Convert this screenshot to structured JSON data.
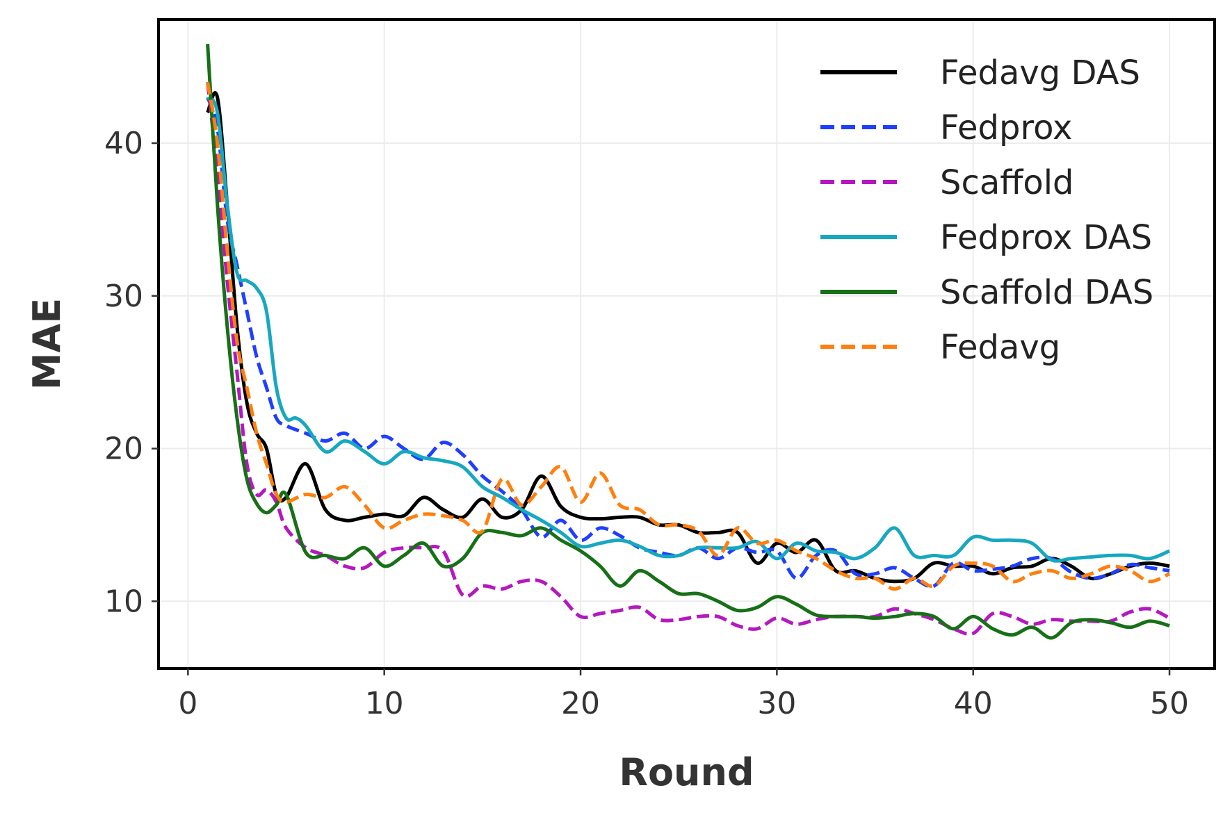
{
  "chart_data": {
    "type": "line",
    "xlabel": "Round",
    "ylabel": "MAE",
    "xlim": [
      -1.5,
      52.3
    ],
    "ylim": [
      5.6,
      48.1
    ],
    "xticks": [
      0,
      10,
      20,
      30,
      40,
      50
    ],
    "yticks": [
      10,
      20,
      30,
      40
    ],
    "grid": true,
    "legend_position": "top-right",
    "series": [
      {
        "name": "Fedavg DAS",
        "color": "#000000",
        "dash": "solid",
        "x": [
          1,
          1.5,
          2,
          2.5,
          3,
          3.5,
          4,
          4.5,
          5,
          6,
          7,
          8,
          9,
          10,
          11,
          12,
          13,
          14,
          15,
          16,
          17,
          18,
          19,
          20,
          21,
          22,
          23,
          24,
          25,
          26,
          27,
          28,
          29,
          30,
          31,
          32,
          33,
          34,
          35,
          36,
          37,
          38,
          39,
          40,
          41,
          42,
          43,
          44,
          45,
          46,
          47,
          48,
          49,
          50
        ],
        "y": [
          42,
          43,
          36,
          28,
          23,
          21,
          20,
          17,
          16.8,
          19,
          16,
          15.3,
          15.5,
          15.7,
          15.6,
          16.8,
          16,
          15.5,
          16.7,
          15.5,
          16,
          18.2,
          16.2,
          15.5,
          15.4,
          15.5,
          15.5,
          15,
          15,
          14.5,
          14.5,
          14.5,
          12.5,
          13.8,
          13.2,
          14,
          12,
          12,
          11.5,
          11.3,
          11.5,
          12.5,
          12.3,
          12.3,
          11.8,
          12.2,
          12.3,
          12.8,
          12.3,
          11.5,
          11.8,
          12.3,
          12.5,
          12.3
        ]
      },
      {
        "name": "Fedprox",
        "color": "#1f3fff",
        "dash": "dashed",
        "x": [
          1,
          1.5,
          2,
          2.5,
          3,
          3.5,
          4,
          4.5,
          5,
          6,
          7,
          8,
          9,
          10,
          11,
          12,
          13,
          14,
          15,
          16,
          17,
          18,
          19,
          20,
          21,
          22,
          23,
          24,
          25,
          26,
          27,
          28,
          29,
          30,
          31,
          32,
          33,
          34,
          35,
          36,
          37,
          38,
          39,
          40,
          41,
          42,
          43,
          44,
          45,
          46,
          47,
          48,
          49,
          50
        ],
        "y": [
          43,
          41,
          35,
          32,
          29,
          26,
          24,
          22,
          21.5,
          21,
          20.5,
          21,
          20,
          20.8,
          20,
          19.3,
          20.4,
          19.6,
          18.2,
          17.2,
          16,
          14.2,
          15.3,
          14,
          14.8,
          14.3,
          13.5,
          13.2,
          13,
          13.5,
          12.8,
          13.5,
          13.2,
          13.3,
          11.5,
          13,
          13.3,
          11.8,
          11.8,
          12.2,
          11.5,
          11,
          12.5,
          12,
          12.1,
          12.3,
          12.8,
          12.8,
          11.9,
          11.5,
          11.8,
          12.4,
          12.2,
          12
        ]
      },
      {
        "name": "Scaffold",
        "color": "#b517c0",
        "dash": "dashed",
        "x": [
          1,
          1.5,
          2,
          2.5,
          3,
          3.5,
          4,
          4.5,
          5,
          6,
          7,
          8,
          9,
          10,
          11,
          12,
          13,
          14,
          15,
          16,
          17,
          18,
          19,
          20,
          21,
          22,
          23,
          24,
          25,
          26,
          27,
          28,
          29,
          30,
          31,
          32,
          33,
          34,
          35,
          36,
          37,
          38,
          39,
          40,
          41,
          42,
          43,
          44,
          45,
          46,
          47,
          48,
          49,
          50
        ],
        "y": [
          44,
          38,
          31,
          25,
          19,
          17,
          17.3,
          16.5,
          14.8,
          13.5,
          13,
          12.3,
          12.2,
          13.2,
          13.5,
          13.5,
          13.3,
          10.4,
          11,
          10.8,
          11.3,
          11.3,
          10.3,
          9,
          9.2,
          9.4,
          9.6,
          8.8,
          8.8,
          9,
          9,
          8.4,
          8.2,
          8.9,
          8.5,
          8.8,
          9,
          9,
          9,
          9.5,
          9.2,
          8.8,
          8.2,
          7.9,
          9.2,
          9,
          8.5,
          8.8,
          8.7,
          8.7,
          8.7,
          9.3,
          9.5,
          8.9
        ]
      },
      {
        "name": "Fedprox DAS",
        "color": "#17a8c0",
        "dash": "solid",
        "x": [
          1,
          1.5,
          2,
          2.5,
          3,
          3.5,
          4,
          4.5,
          5,
          5.5,
          6,
          7,
          8,
          9,
          10,
          11,
          12,
          13,
          14,
          15,
          16,
          17,
          18,
          19,
          20,
          21,
          22,
          23,
          24,
          25,
          26,
          27,
          28,
          29,
          30,
          31,
          32,
          33,
          34,
          35,
          36,
          37,
          38,
          39,
          40,
          41,
          42,
          43,
          44,
          45,
          46,
          47,
          48,
          49,
          50
        ],
        "y": [
          43,
          42,
          36,
          31.5,
          31,
          30.5,
          29,
          24,
          22,
          22,
          21.5,
          19.8,
          20.5,
          19.8,
          19,
          19.8,
          19.4,
          19.2,
          18.8,
          17.5,
          16.8,
          16,
          15.3,
          14.5,
          13.6,
          13.8,
          14,
          13.6,
          13,
          13,
          13.5,
          13.5,
          13.5,
          13.9,
          12.8,
          13.8,
          13.3,
          13.2,
          12.8,
          13.5,
          14.8,
          13,
          13,
          13,
          14.2,
          14,
          14,
          13.8,
          12.7,
          12.8,
          12.9,
          13,
          13,
          12.8,
          13.3
        ]
      },
      {
        "name": "Scaffold DAS",
        "color": "#177017",
        "dash": "solid",
        "x": [
          1,
          1.5,
          2,
          2.5,
          3,
          3.5,
          4,
          4.5,
          5,
          6,
          7,
          8,
          9,
          10,
          11,
          12,
          13,
          14,
          15,
          16,
          17,
          18,
          19,
          20,
          21,
          22,
          23,
          24,
          25,
          26,
          27,
          28,
          29,
          30,
          31,
          32,
          33,
          34,
          35,
          36,
          37,
          38,
          39,
          40,
          41,
          42,
          43,
          44,
          45,
          46,
          47,
          48,
          49,
          50
        ],
        "y": [
          46.5,
          36,
          28,
          22,
          18,
          16.4,
          15.8,
          16.3,
          17,
          13.2,
          13,
          12.8,
          13.5,
          12.3,
          13,
          13.8,
          12.3,
          12.8,
          14.5,
          14.5,
          14.3,
          14.8,
          14,
          13.3,
          12.3,
          11,
          12,
          11.3,
          10.5,
          10.5,
          10,
          9.4,
          9.6,
          10.3,
          9.8,
          9.1,
          9,
          9,
          8.9,
          9,
          9.2,
          9,
          8.2,
          9,
          8.2,
          7.8,
          8.3,
          7.6,
          8.6,
          8.8,
          8.6,
          8.3,
          8.7,
          8.4
        ]
      },
      {
        "name": "Fedavg",
        "color": "#ff7f0e",
        "dash": "dashed",
        "x": [
          1,
          1.5,
          2,
          2.5,
          3,
          3.5,
          4,
          4.5,
          5,
          6,
          7,
          8,
          9,
          10,
          11,
          12,
          13,
          14,
          15,
          16,
          17,
          18,
          19,
          20,
          21,
          22,
          23,
          24,
          25,
          26,
          27,
          28,
          29,
          30,
          31,
          32,
          33,
          34,
          35,
          36,
          37,
          38,
          39,
          40,
          41,
          42,
          43,
          44,
          45,
          46,
          47,
          48,
          49,
          50
        ],
        "y": [
          44,
          40,
          33,
          27,
          24,
          21,
          19,
          17,
          16.5,
          17,
          16.8,
          17.5,
          16.3,
          14.8,
          15.3,
          15.7,
          15.6,
          15.3,
          14.6,
          18,
          16.3,
          17.5,
          18.8,
          16.5,
          18.4,
          16.3,
          16,
          15,
          15,
          14.6,
          13,
          14.8,
          13.8,
          14,
          13.3,
          12.8,
          12,
          11.5,
          11.5,
          10.8,
          11.5,
          11,
          12.3,
          12.5,
          12.3,
          11.3,
          11.8,
          12,
          11.5,
          11.8,
          12.3,
          12,
          11.3,
          11.8
        ]
      }
    ]
  }
}
